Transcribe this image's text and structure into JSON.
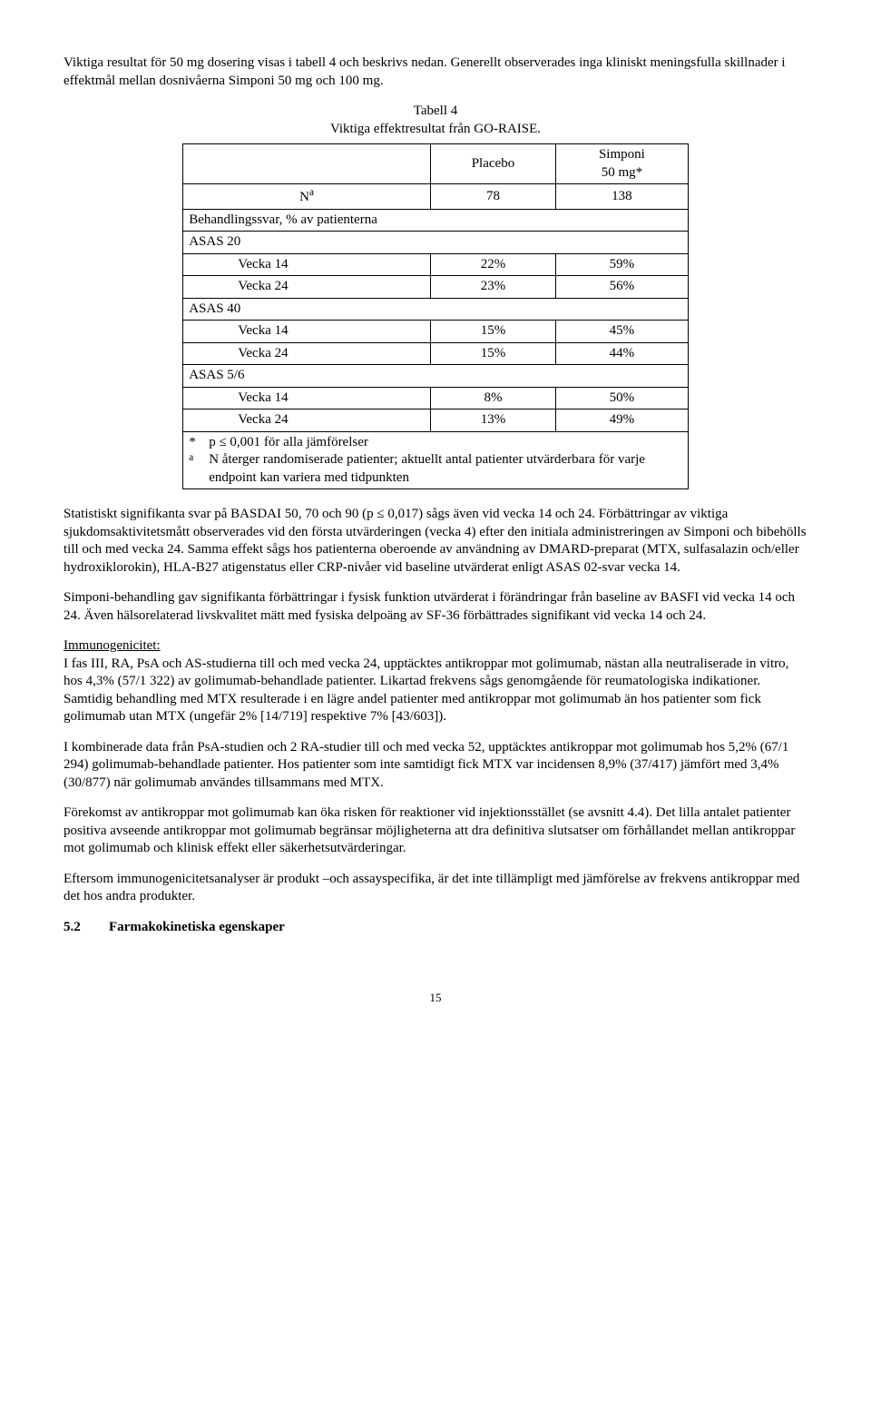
{
  "intro": "Viktiga resultat för 50 mg dosering visas i tabell 4 och beskrivs nedan. Generellt observerades inga kliniskt meningsfulla skillnader i effektmål mellan dosnivåerna Simponi 50 mg och 100 mg.",
  "table": {
    "caption_line1": "Tabell 4",
    "caption_line2": "Viktiga effektresultat från GO-RAISE.",
    "col_placebo": "Placebo",
    "col_treatment_line1": "Simponi",
    "col_treatment_line2": "50 mg*",
    "n_label": "N",
    "n_sup": "a",
    "n_placebo": "78",
    "n_treatment": "138",
    "resp_header": "Behandlingssvar, % av patienterna",
    "asas20": "ASAS 20",
    "v14": "Vecka 14",
    "v24": "Vecka 24",
    "asas40": "ASAS 40",
    "asas56": "ASAS 5/6",
    "asas20_v14_p": "22%",
    "asas20_v14_t": "59%",
    "asas20_v24_p": "23%",
    "asas20_v24_t": "56%",
    "asas40_v14_p": "15%",
    "asas40_v14_t": "45%",
    "asas40_v24_p": "15%",
    "asas40_v24_t": "44%",
    "asas56_v14_p": "8%",
    "asas56_v14_t": "50%",
    "asas56_v24_p": "13%",
    "asas56_v24_t": "49%",
    "foot1_marker": "*",
    "foot1_text": "p ≤ 0,001 för alla jämförelser",
    "foot2_marker": "a",
    "foot2_text": "N återger randomiserade patienter; aktuellt antal patienter utvärderbara för varje endpoint kan variera med tidpunkten"
  },
  "p2": "Statistiskt signifikanta svar på BASDAI 50, 70 och 90 (p ≤ 0,017) sågs även vid vecka 14 och 24. Förbättringar av viktiga sjukdomsaktivitetsmått observerades vid den första utvärderingen (vecka 4) efter den initiala administreringen av Simponi och bibehölls till och med vecka 24. Samma effekt sågs hos patienterna oberoende av användning av DMARD-preparat (MTX, sulfasalazin och/eller hydroxiklorokin), HLA-B27 atigenstatus eller CRP-nivåer vid baseline utvärderat enligt ASAS 02-svar vecka 14.",
  "p3": "Simponi-behandling gav signifikanta förbättringar i fysisk funktion utvärderat i förändringar från baseline av BASFI vid vecka 14 och 24. Även hälsorelaterad livskvalitet mätt med fysiska delpoäng av SF-36 förbättrades signifikant vid vecka 14 och 24.",
  "immuno_head": "Immunogenicitet:",
  "p4": "I fas III, RA, PsA och AS-studierna till och med vecka 24, upptäcktes antikroppar mot golimumab, nästan alla neutraliserade in vitro, hos 4,3% (57/1 322) av golimumab-behandlade patienter. Likartad frekvens sågs genomgående för reumatologiska indikationer. Samtidig behandling med MTX resulterade i en lägre andel patienter med antikroppar mot golimumab än hos patienter som fick golimumab utan MTX (ungefär 2% [14/719] respektive 7% [43/603]).",
  "p5": "I kombinerade data från PsA-studien och 2 RA-studier till och med vecka 52, upptäcktes antikroppar mot golimumab hos 5,2% (67/1 294) golimumab-behandlade patienter. Hos patienter som inte samtidigt fick MTX var incidensen 8,9% (37/417) jämfört med 3,4% (30/877) när golimumab användes tillsammans med MTX.",
  "p6": "Förekomst av antikroppar mot golimumab kan öka risken för reaktioner vid injektionsstället (se avsnitt 4.4). Det lilla antalet patienter positiva avseende antikroppar mot golimumab begränsar möjligheterna att dra definitiva slutsatser om förhållandet mellan antikroppar mot golimumab och klinisk effekt eller säkerhetsutvärderingar.",
  "p7": "Eftersom immunogenicitetsanalyser är produkt –och assayspecifika, är det inte tillämpligt med jämförelse av frekvens antikroppar med det hos andra produkter.",
  "section_num": "5.2",
  "section_title": "Farmakokinetiska egenskaper",
  "page_num": "15"
}
